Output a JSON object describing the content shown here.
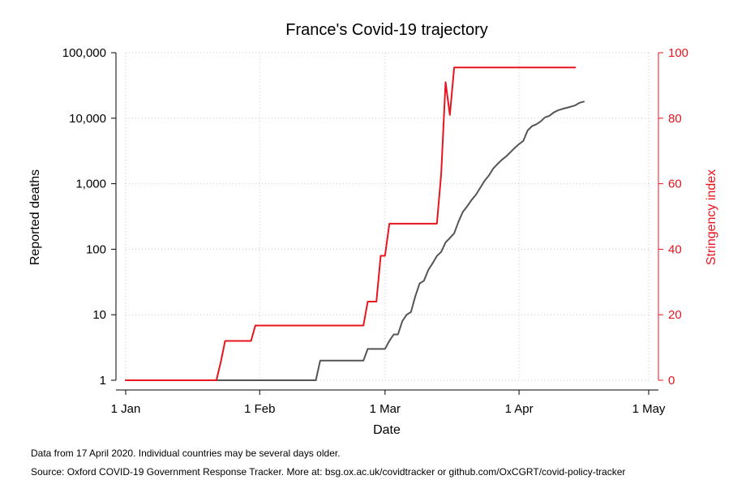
{
  "chart_data": {
    "type": "line",
    "title": "France's Covid-19 trajectory",
    "xlabel": "Date",
    "ylabel_left": "Reported deaths",
    "ylabel_right": "Stringency index",
    "x_axis": {
      "ticks": [
        "1 Jan",
        "1 Feb",
        "1 Mar",
        "1 Apr",
        "1 May"
      ],
      "range": [
        "2020-01-01",
        "2020-05-01"
      ]
    },
    "y_left": {
      "scale": "log",
      "ticks": [
        1,
        10,
        100,
        1000,
        10000,
        100000
      ],
      "tick_labels": [
        "1",
        "10",
        "100",
        "1,000",
        "10,000",
        "100,000"
      ],
      "range": [
        1,
        100000
      ]
    },
    "y_right": {
      "scale": "linear",
      "ticks": [
        0,
        20,
        40,
        60,
        80,
        100
      ],
      "tick_labels": [
        "0",
        "20",
        "40",
        "60",
        "80",
        "100"
      ],
      "range": [
        0,
        100
      ],
      "color": "#e8141e"
    },
    "grid": true,
    "series": [
      {
        "axis": "left",
        "color": "#555555",
        "points": [
          [
            "2020-01-01",
            1
          ],
          [
            "2020-02-14",
            1
          ],
          [
            "2020-02-15",
            2
          ],
          [
            "2020-02-25",
            2
          ],
          [
            "2020-02-26",
            3
          ],
          [
            "2020-03-01",
            3
          ],
          [
            "2020-03-02",
            4
          ],
          [
            "2020-03-03",
            5
          ],
          [
            "2020-03-04",
            5
          ],
          [
            "2020-03-05",
            8
          ],
          [
            "2020-03-06",
            10
          ],
          [
            "2020-03-07",
            11
          ],
          [
            "2020-03-08",
            19
          ],
          [
            "2020-03-09",
            30
          ],
          [
            "2020-03-10",
            33
          ],
          [
            "2020-03-11",
            48
          ],
          [
            "2020-03-12",
            61
          ],
          [
            "2020-03-13",
            79
          ],
          [
            "2020-03-14",
            91
          ],
          [
            "2020-03-15",
            127
          ],
          [
            "2020-03-16",
            148
          ],
          [
            "2020-03-17",
            175
          ],
          [
            "2020-03-18",
            264
          ],
          [
            "2020-03-19",
            372
          ],
          [
            "2020-03-20",
            450
          ],
          [
            "2020-03-21",
            562
          ],
          [
            "2020-03-22",
            674
          ],
          [
            "2020-03-23",
            860
          ],
          [
            "2020-03-24",
            1100
          ],
          [
            "2020-03-25",
            1331
          ],
          [
            "2020-03-26",
            1696
          ],
          [
            "2020-03-27",
            1995
          ],
          [
            "2020-03-28",
            2314
          ],
          [
            "2020-03-29",
            2606
          ],
          [
            "2020-03-30",
            3024
          ],
          [
            "2020-03-31",
            3523
          ],
          [
            "2020-04-01",
            4032
          ],
          [
            "2020-04-02",
            4503
          ],
          [
            "2020-04-03",
            6507
          ],
          [
            "2020-04-04",
            7560
          ],
          [
            "2020-04-05",
            8078
          ],
          [
            "2020-04-06",
            8911
          ],
          [
            "2020-04-07",
            10328
          ],
          [
            "2020-04-08",
            10869
          ],
          [
            "2020-04-09",
            12210
          ],
          [
            "2020-04-10",
            13197
          ],
          [
            "2020-04-11",
            13832
          ],
          [
            "2020-04-12",
            14393
          ],
          [
            "2020-04-13",
            14967
          ],
          [
            "2020-04-14",
            15729
          ],
          [
            "2020-04-15",
            17167
          ],
          [
            "2020-04-16",
            17920
          ]
        ]
      },
      {
        "axis": "right",
        "color": "#e8141e",
        "points": [
          [
            "2020-01-01",
            0
          ],
          [
            "2020-01-22",
            0
          ],
          [
            "2020-01-23",
            5.6
          ],
          [
            "2020-01-24",
            12
          ],
          [
            "2020-01-30",
            12
          ],
          [
            "2020-01-31",
            16.7
          ],
          [
            "2020-02-25",
            16.7
          ],
          [
            "2020-02-26",
            24
          ],
          [
            "2020-02-28",
            24
          ],
          [
            "2020-02-29",
            38
          ],
          [
            "2020-03-01",
            38
          ],
          [
            "2020-03-02",
            47.8
          ],
          [
            "2020-03-13",
            47.8
          ],
          [
            "2020-03-14",
            63
          ],
          [
            "2020-03-15",
            91
          ],
          [
            "2020-03-16",
            81
          ],
          [
            "2020-03-17",
            95.5
          ],
          [
            "2020-04-14",
            95.5
          ]
        ]
      }
    ]
  },
  "notes": {
    "line1": "Data from 17 April 2020. Individual countries may be several days older.",
    "line2": "Source: Oxford COVID-19 Government Response Tracker. More at: bsg.ox.ac.uk/covidtracker or github.com/OxCGRT/covid-policy-tracker"
  }
}
